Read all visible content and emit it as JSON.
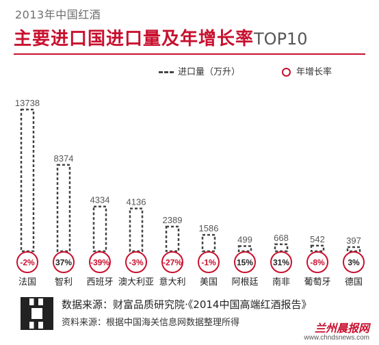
{
  "header": {
    "supertitle": "2013年中国红酒",
    "title": "主要进口国进口量及年增长率",
    "title_suffix": "TOP10"
  },
  "legend": {
    "volume_label": "进口量（万升）",
    "rate_label": "年增长率"
  },
  "chart_data": {
    "type": "bar",
    "categories": [
      "法国",
      "智利",
      "西班牙",
      "澳大利亚",
      "意大利",
      "美国",
      "阿根廷",
      "南非",
      "葡萄牙",
      "德国"
    ],
    "series": [
      {
        "name": "进口量（万升）",
        "values": [
          13738,
          8374,
          4334,
          4136,
          2389,
          1586,
          499,
          668,
          542,
          397
        ]
      },
      {
        "name": "年增长率",
        "values": [
          "-2%",
          "37%",
          "-39%",
          "-3%",
          "-27%",
          "-1%",
          "15%",
          "31%",
          "-8%",
          "3%"
        ]
      }
    ],
    "ylim": [
      0,
      13738
    ],
    "colors": {
      "bar_outline": "#444444",
      "rate_circle": "#c8102e",
      "negative_text": "#c8102e",
      "positive_text": "#222222"
    }
  },
  "footer": {
    "source_1": "数据来源：财富品质研究院·《2014中国高端红酒报告》",
    "source_2": "资料来源：根据中国海关信息网数据整理所得",
    "logo_text": "兰州晨报网",
    "site_text": "www.chndsnews.com"
  }
}
